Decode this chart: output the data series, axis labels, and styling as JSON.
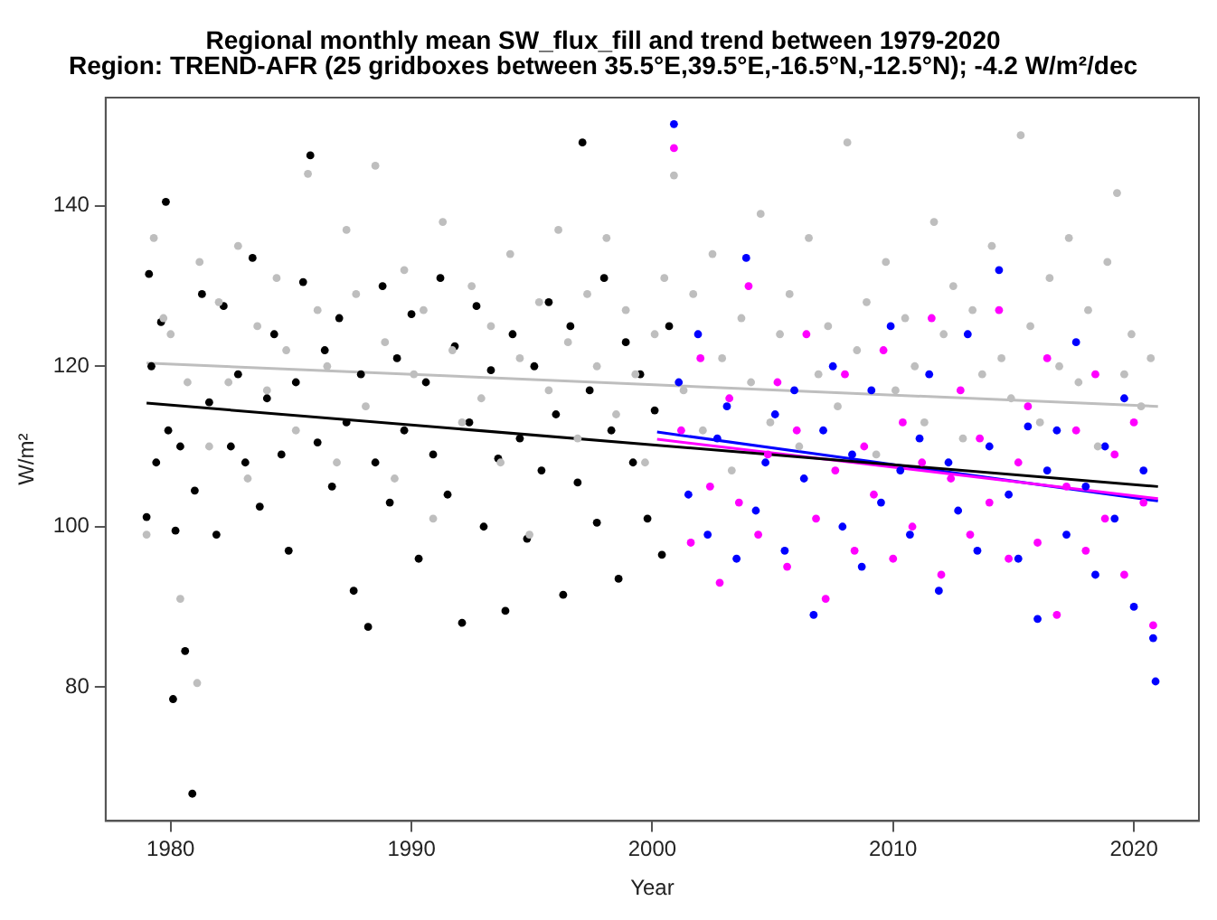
{
  "chart_data": {
    "type": "scatter",
    "title": "Regional monthly mean SW_flux_fill and trend between 1979-2020",
    "subtitle": "Region: TREND-AFR (25 gridboxes between 35.5°E,39.5°E,-16.5°N,-12.5°N); -4.2 W/m²/dec",
    "xlabel": "Year",
    "ylabel": "W/m²",
    "xlim": [
      1977.3,
      2022.7
    ],
    "xticks": [
      1980,
      1990,
      2000,
      2010,
      2020
    ],
    "ylim": [
      63.3,
      153.5
    ],
    "yticks": [
      80,
      100,
      120,
      140
    ],
    "grid": false,
    "legend": false,
    "marker": "circle",
    "series": [
      {
        "color": "#bebebe",
        "x": [
          1979.0,
          1979.3,
          1979.7,
          1980.0,
          1980.4,
          1980.7,
          1981.1,
          1981.2,
          1981.6,
          1982.0,
          1982.4,
          1982.8,
          1983.2,
          1983.6,
          1984.0,
          1984.4,
          1984.8,
          1985.2,
          1985.7,
          1986.1,
          1986.5,
          1986.9,
          1987.3,
          1987.7,
          1988.1,
          1988.5,
          1988.9,
          1989.3,
          1989.7,
          1990.1,
          1990.5,
          1990.9,
          1991.3,
          1991.7,
          1992.1,
          1992.5,
          1992.9,
          1993.3,
          1993.7,
          1994.1,
          1994.5,
          1994.9,
          1995.3,
          1995.7,
          1996.1,
          1996.5,
          1996.9,
          1997.3,
          1997.7,
          1998.1,
          1998.5,
          1998.9,
          1999.3,
          1999.7,
          2000.1,
          2000.5,
          2000.9,
          2001.3,
          2001.7,
          2002.1,
          2002.5,
          2002.9,
          2003.3,
          2003.7,
          2004.1,
          2004.5,
          2004.9,
          2005.3,
          2005.7,
          2006.1,
          2006.5,
          2006.9,
          2007.3,
          2007.7,
          2008.1,
          2008.5,
          2008.9,
          2009.3,
          2009.7,
          2010.1,
          2010.5,
          2010.9,
          2011.3,
          2011.7,
          2012.1,
          2012.5,
          2012.9,
          2013.3,
          2013.7,
          2014.1,
          2014.5,
          2014.9,
          2015.3,
          2015.7,
          2016.1,
          2016.5,
          2016.9,
          2017.3,
          2017.7,
          2018.1,
          2018.5,
          2018.9,
          2019.3,
          2019.6,
          2019.9,
          2020.3,
          2020.7
        ],
        "values": [
          99,
          136,
          126,
          124,
          91,
          118,
          80.5,
          133,
          110,
          128,
          118,
          135,
          106,
          125,
          117,
          131,
          122,
          112,
          144,
          127,
          120,
          108,
          137,
          129,
          115,
          145,
          123,
          106,
          132,
          119,
          127,
          101,
          138,
          122,
          113,
          130,
          116,
          125,
          108,
          134,
          121,
          99,
          128,
          117,
          137,
          123,
          111,
          129,
          120,
          136,
          114,
          127,
          119,
          108,
          124,
          131,
          143.8,
          117,
          129,
          112,
          134,
          121,
          107,
          126,
          118,
          139,
          113,
          124,
          129,
          110,
          136,
          119,
          125,
          115,
          147.9,
          122,
          128,
          109,
          133,
          117,
          126,
          120,
          113,
          138,
          124,
          130,
          111,
          127,
          119,
          135,
          121,
          116,
          148.8,
          125,
          113,
          131,
          120,
          136,
          118,
          127,
          110,
          133,
          141.6,
          119,
          124,
          115,
          121
        ]
      },
      {
        "color": "#000000",
        "x": [
          1979.0,
          1979.1,
          1979.2,
          1979.4,
          1979.6,
          1979.8,
          1979.9,
          1980.1,
          1980.2,
          1980.4,
          1980.6,
          1980.9,
          1981.0,
          1981.3,
          1981.6,
          1981.9,
          1982.2,
          1982.5,
          1982.8,
          1983.1,
          1983.4,
          1983.7,
          1984.0,
          1984.3,
          1984.6,
          1984.9,
          1985.2,
          1985.5,
          1985.8,
          1986.1,
          1986.4,
          1986.7,
          1987.0,
          1987.3,
          1987.6,
          1987.9,
          1988.2,
          1988.5,
          1988.8,
          1989.1,
          1989.4,
          1989.7,
          1990.0,
          1990.3,
          1990.6,
          1990.9,
          1991.2,
          1991.5,
          1991.8,
          1992.1,
          1992.4,
          1992.7,
          1993.0,
          1993.3,
          1993.6,
          1993.9,
          1994.2,
          1994.5,
          1994.8,
          1995.1,
          1995.4,
          1995.7,
          1996.0,
          1996.3,
          1996.6,
          1996.9,
          1997.1,
          1997.4,
          1997.7,
          1998.0,
          1998.3,
          1998.6,
          1998.9,
          1999.2,
          1999.5,
          1999.8,
          2000.1,
          2000.4,
          2000.7
        ],
        "values": [
          101.2,
          131.5,
          120,
          108,
          125.5,
          140.5,
          112,
          78.5,
          99.5,
          110,
          84.5,
          66.7,
          104.5,
          129,
          115.5,
          99,
          127.5,
          110,
          119,
          108,
          133.5,
          102.5,
          116,
          124,
          109,
          97,
          118,
          130.5,
          146.3,
          110.5,
          122,
          105,
          126,
          113,
          92,
          119,
          87.5,
          108,
          130,
          103,
          121,
          112,
          126.5,
          96,
          118,
          109,
          131,
          104,
          122.5,
          88,
          113,
          127.5,
          100,
          119.5,
          108.5,
          89.5,
          124,
          111,
          98.5,
          120,
          107,
          128,
          114,
          91.5,
          125,
          105.5,
          147.9,
          117,
          100.5,
          131,
          112,
          93.5,
          123,
          108,
          119,
          101,
          114.5,
          96.5,
          125
        ]
      },
      {
        "color": "#ff00ff",
        "x": [
          2000.9,
          2001.2,
          2001.6,
          2002.0,
          2002.4,
          2002.8,
          2003.2,
          2003.6,
          2004.0,
          2004.4,
          2004.8,
          2005.2,
          2005.6,
          2006.0,
          2006.4,
          2006.8,
          2007.2,
          2007.6,
          2008.0,
          2008.4,
          2008.8,
          2009.2,
          2009.6,
          2010.0,
          2010.4,
          2010.8,
          2011.2,
          2011.6,
          2012.0,
          2012.4,
          2012.8,
          2013.2,
          2013.6,
          2014.0,
          2014.4,
          2014.8,
          2015.2,
          2015.6,
          2016.0,
          2016.4,
          2016.8,
          2017.2,
          2017.6,
          2018.0,
          2018.4,
          2018.8,
          2019.2,
          2019.6,
          2020.0,
          2020.4,
          2020.8
        ],
        "values": [
          147.2,
          112,
          98,
          121,
          105,
          93,
          116,
          103,
          130,
          99,
          109,
          118,
          95,
          112,
          124,
          101,
          91,
          107,
          119,
          97,
          110,
          104,
          122,
          96,
          113,
          100,
          108,
          126,
          94,
          106,
          117,
          99,
          111,
          103,
          127,
          96,
          108,
          115,
          98,
          121,
          89,
          105,
          112,
          97,
          119,
          101,
          109,
          94,
          113,
          103,
          87.7
        ]
      },
      {
        "color": "#0000ff",
        "x": [
          2000.9,
          2001.1,
          2001.5,
          2001.9,
          2002.3,
          2002.7,
          2003.1,
          2003.5,
          2003.9,
          2004.3,
          2004.7,
          2005.1,
          2005.5,
          2005.9,
          2006.3,
          2006.7,
          2007.1,
          2007.5,
          2007.9,
          2008.3,
          2008.7,
          2009.1,
          2009.5,
          2009.9,
          2010.3,
          2010.7,
          2011.1,
          2011.5,
          2011.9,
          2012.3,
          2012.7,
          2013.1,
          2013.5,
          2014.0,
          2014.4,
          2014.8,
          2015.2,
          2015.6,
          2016.0,
          2016.4,
          2016.8,
          2017.2,
          2017.6,
          2018.0,
          2018.4,
          2018.8,
          2019.2,
          2019.6,
          2020.0,
          2020.4,
          2020.8,
          2020.9
        ],
        "values": [
          150.2,
          118,
          104,
          124,
          99,
          111,
          115,
          96,
          133.5,
          102,
          108,
          114,
          97,
          117,
          106,
          89,
          112,
          120,
          100,
          109,
          95,
          117,
          103,
          125,
          107,
          99,
          111,
          119,
          92,
          108,
          102,
          124,
          97,
          110,
          132,
          104,
          96,
          112.5,
          88.5,
          107,
          112,
          99,
          123,
          105,
          94,
          110,
          101,
          116,
          90,
          107,
          86.1,
          80.7
        ]
      },
      {
        "type": "line",
        "marker": "none",
        "color": "#bebebe",
        "x": [
          1979,
          2021
        ],
        "values": [
          120.4,
          115
        ]
      },
      {
        "type": "line",
        "marker": "none",
        "color": "#000000",
        "x": [
          1979,
          2021
        ],
        "values": [
          115.4,
          105
        ]
      },
      {
        "type": "line",
        "marker": "none",
        "color": "#ff00ff",
        "x": [
          2000.2,
          2021
        ],
        "values": [
          110.9,
          103.5
        ]
      },
      {
        "type": "line",
        "marker": "none",
        "color": "#0000ff",
        "x": [
          2000.2,
          2021
        ],
        "values": [
          111.8,
          103.2
        ]
      }
    ]
  }
}
